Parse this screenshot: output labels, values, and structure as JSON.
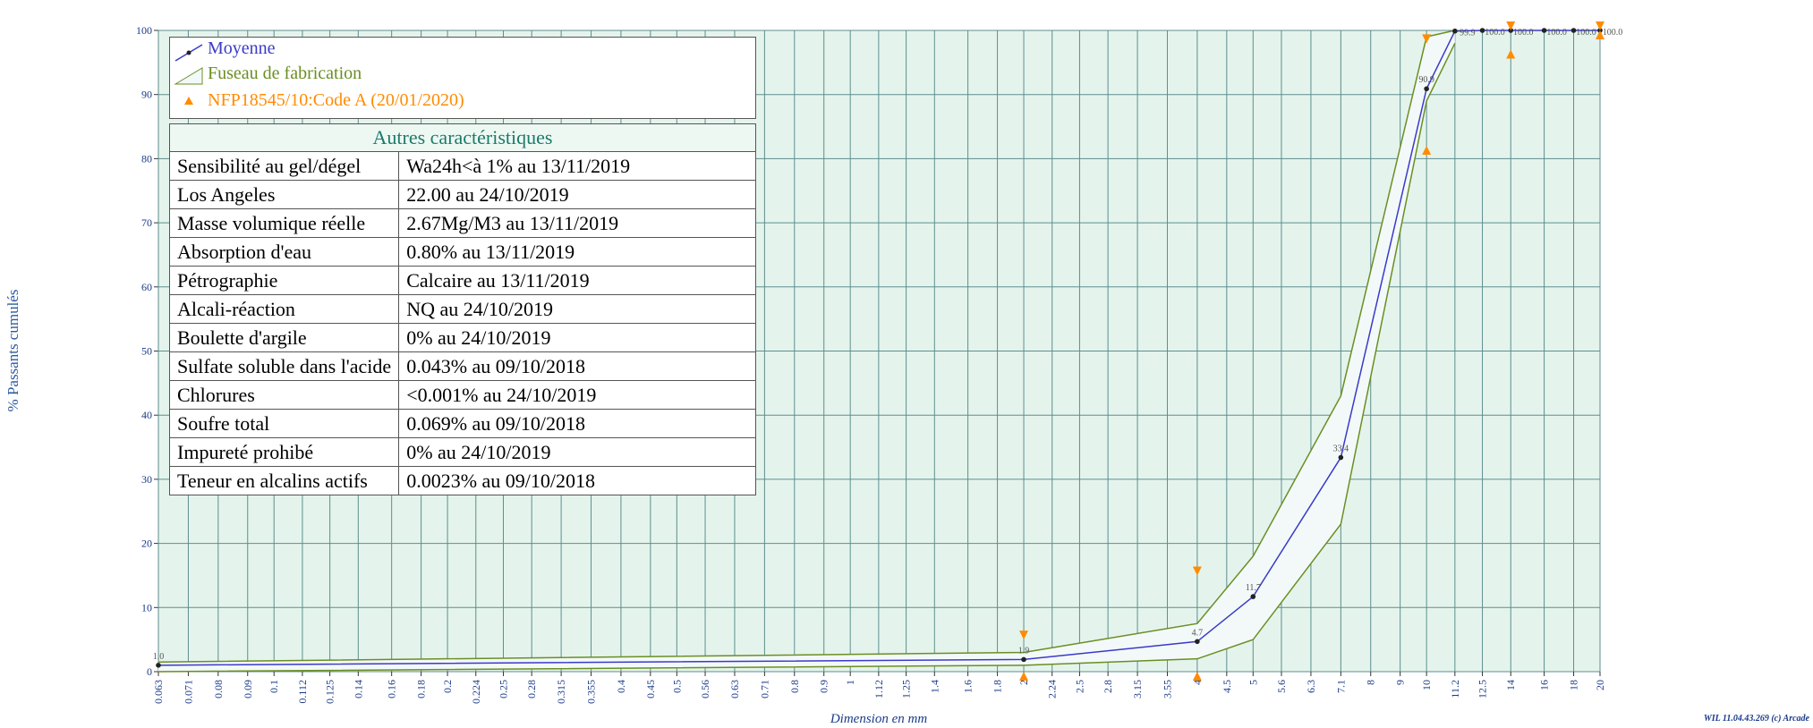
{
  "chart_data": {
    "type": "line",
    "ylabel": "% Passants cumulés",
    "xlabel": "Dimension en mm",
    "xscale": "log",
    "xlim": [
      0.063,
      20
    ],
    "ylim": [
      0,
      100
    ],
    "xticks": [
      0.063,
      0.071,
      0.08,
      0.09,
      0.1,
      0.112,
      0.125,
      0.14,
      0.16,
      0.18,
      0.2,
      0.224,
      0.25,
      0.28,
      0.315,
      0.355,
      0.4,
      0.45,
      0.5,
      0.56,
      0.63,
      0.71,
      0.8,
      0.9,
      1,
      1.12,
      1.25,
      1.4,
      1.6,
      1.8,
      2,
      2.24,
      2.5,
      2.8,
      3.15,
      3.55,
      4,
      4.5,
      5,
      5.6,
      6.3,
      7.1,
      8,
      9,
      10,
      11.2,
      12.5,
      14,
      16,
      18,
      20
    ],
    "yticks": [
      0,
      10,
      20,
      30,
      40,
      50,
      60,
      70,
      80,
      90,
      100
    ],
    "grid": true,
    "series": [
      {
        "name": "Moyenne",
        "color": "#3a3ac8",
        "x": [
          0.063,
          2,
          4,
          5,
          7.1,
          10,
          11.2,
          12.5,
          14,
          16,
          18,
          20
        ],
        "values": [
          1.0,
          1.9,
          4.7,
          11.7,
          33.4,
          90.9,
          99.9,
          100,
          100,
          100,
          100,
          100
        ],
        "value_labels": [
          "1.0",
          "1.9",
          "4.7",
          "11.7",
          "33.4",
          "90.9",
          "99.9",
          "100.0",
          "100.0",
          "100.0",
          "100.0",
          "100.0"
        ]
      },
      {
        "name": "Fuseau de fabrication",
        "color": "#6b8e23",
        "x": [
          0.063,
          2,
          4,
          5,
          7.1,
          10,
          11.2
        ],
        "upper": [
          1.5,
          3,
          7.5,
          18,
          43,
          99,
          100
        ],
        "lower": [
          0,
          1,
          2,
          5,
          23,
          89,
          98
        ]
      },
      {
        "name": "NFP18545/10:Code A (20/01/2020)",
        "color": "#ff8c00",
        "x": [
          2,
          4,
          10,
          14,
          20
        ],
        "upper": [
          5,
          15,
          98,
          100,
          100
        ],
        "lower": [
          0,
          0,
          82,
          97,
          100
        ]
      }
    ]
  },
  "table": {
    "header": "Autres caractéristiques",
    "rows": [
      [
        "Sensibilité au gel/dégel",
        "Wa24h<à 1%  au 13/11/2019"
      ],
      [
        "Los Angeles",
        "22.00  au 24/10/2019"
      ],
      [
        "Masse volumique réelle",
        "2.67Mg/M3  au 13/11/2019"
      ],
      [
        "Absorption d'eau",
        "0.80% au 13/11/2019"
      ],
      [
        "Pétrographie",
        "Calcaire  au 13/11/2019"
      ],
      [
        "Alcali-réaction",
        "NQ  au 24/10/2019"
      ],
      [
        "Boulette d'argile",
        "0% au 24/10/2019"
      ],
      [
        "Sulfate soluble dans l'acide",
        "0.043% au 09/10/2018"
      ],
      [
        "Chlorures",
        "<0.001% au 24/10/2019"
      ],
      [
        "Soufre total",
        "0.069% au 09/10/2018"
      ],
      [
        "Impureté prohibé",
        "0% au 24/10/2019"
      ],
      [
        "Teneur en alcalins actifs",
        "0.0023% au 09/10/2018"
      ]
    ]
  },
  "footer": "WIL 11.04.43.269 (c) Arcade"
}
